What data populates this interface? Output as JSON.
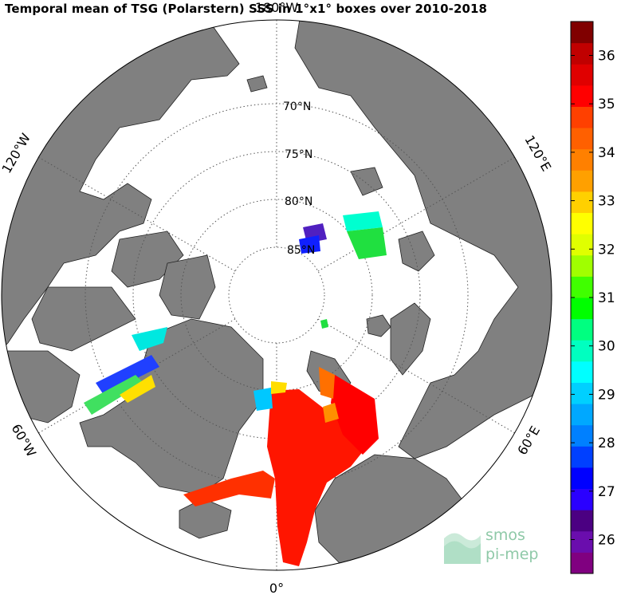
{
  "title": "Temporal mean of TSG (Polarstern) SSS in 1°x1° boxes over 2010-2018",
  "map": {
    "projection": "north polar stereographic",
    "latitude_labels": [
      "70°N",
      "75°N",
      "80°N",
      "85°N"
    ],
    "longitude_labels": {
      "top": "180°W",
      "bottom": "0°",
      "upper_left": "120°W",
      "lower_left": "60°W",
      "upper_right": "120°E",
      "lower_right": "60°E"
    },
    "colors": {
      "land": "#808080",
      "sea_ice": "#ffffff",
      "ocean": "#ffffff",
      "grid": "#555555"
    }
  },
  "colorbar": {
    "min": 25.3,
    "max": 36.7,
    "ticks": [
      "26",
      "27",
      "28",
      "29",
      "30",
      "31",
      "32",
      "33",
      "34",
      "35",
      "36"
    ],
    "colors": [
      "#800080",
      "#6a0dad",
      "#4b0082",
      "#2a00ff",
      "#0000ff",
      "#0040ff",
      "#0080ff",
      "#00a8ff",
      "#00d0ff",
      "#00ffff",
      "#00ffc0",
      "#00ff80",
      "#00ff00",
      "#40ff00",
      "#a0ff00",
      "#e0ff00",
      "#ffff00",
      "#ffd000",
      "#ffa000",
      "#ff8000",
      "#ff6000",
      "#ff4000",
      "#ff0000",
      "#e00000",
      "#c00000",
      "#800000"
    ]
  },
  "logo": {
    "line1": "smos",
    "line2": "pi-mep"
  }
}
